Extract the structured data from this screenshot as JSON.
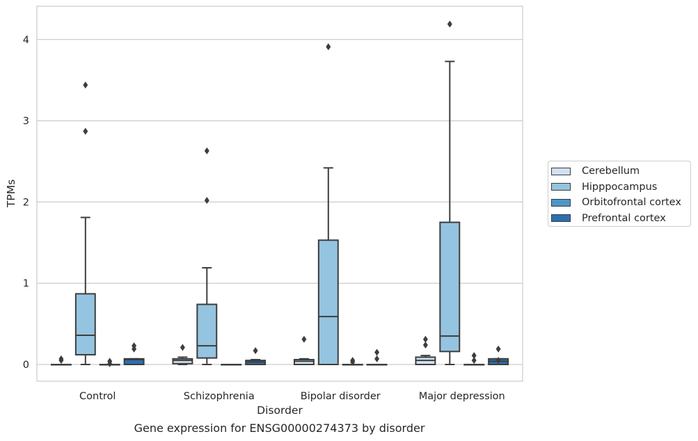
{
  "chart_data": {
    "type": "box",
    "title": "Gene expression for ENSG00000274373 by disorder",
    "xlabel": "Disorder",
    "ylabel": "TPMs",
    "ylim": [
      -0.2,
      4.4
    ],
    "yticks": [
      0,
      1,
      2,
      3,
      4
    ],
    "grid": "horizontal",
    "legend_position": "right",
    "categories": [
      "Control",
      "Schizophrenia",
      "Bipolar disorder",
      "Major depression"
    ],
    "series": [
      {
        "name": "Cerebellum",
        "color": "#d0e1f2",
        "boxes": [
          {
            "q1": 0,
            "median": 0,
            "q3": 0,
            "whisker_low": 0,
            "whisker_high": 0,
            "outliers": [
              0.05,
              0.07
            ]
          },
          {
            "q1": 0.01,
            "median": 0.05,
            "q3": 0.07,
            "whisker_low": 0,
            "whisker_high": 0.09,
            "outliers": [
              0.21
            ]
          },
          {
            "q1": 0,
            "median": 0.04,
            "q3": 0.06,
            "whisker_low": 0,
            "whisker_high": 0.07,
            "outliers": [
              0.31
            ]
          },
          {
            "q1": 0,
            "median": 0.05,
            "q3": 0.09,
            "whisker_low": 0,
            "whisker_high": 0.11,
            "outliers": [
              0.24,
              0.31
            ]
          }
        ]
      },
      {
        "name": "Hipppocampus",
        "color": "#94c4df",
        "boxes": [
          {
            "q1": 0.12,
            "median": 0.36,
            "q3": 0.87,
            "whisker_low": 0,
            "whisker_high": 1.81,
            "outliers": [
              2.87,
              3.44
            ]
          },
          {
            "q1": 0.08,
            "median": 0.23,
            "q3": 0.74,
            "whisker_low": 0,
            "whisker_high": 1.19,
            "outliers": [
              2.02,
              2.63
            ]
          },
          {
            "q1": 0,
            "median": 0.59,
            "q3": 1.53,
            "whisker_low": 0,
            "whisker_high": 2.42,
            "outliers": [
              3.91
            ]
          },
          {
            "q1": 0.16,
            "median": 0.35,
            "q3": 1.75,
            "whisker_low": 0,
            "whisker_high": 3.73,
            "outliers": [
              4.19
            ]
          }
        ]
      },
      {
        "name": "Orbitofrontal cortex",
        "color": "#4a98c9",
        "boxes": [
          {
            "q1": 0,
            "median": 0,
            "q3": 0,
            "whisker_low": 0,
            "whisker_high": 0,
            "outliers": [
              0.01,
              0.04
            ]
          },
          {
            "q1": 0,
            "median": 0,
            "q3": 0,
            "whisker_low": 0,
            "whisker_high": 0,
            "outliers": []
          },
          {
            "q1": 0,
            "median": 0,
            "q3": 0,
            "whisker_low": 0,
            "whisker_high": 0,
            "outliers": [
              0.03,
              0.05
            ]
          },
          {
            "q1": 0,
            "median": 0,
            "q3": 0,
            "whisker_low": 0,
            "whisker_high": 0,
            "outliers": [
              0.05,
              0.11
            ]
          }
        ]
      },
      {
        "name": "Prefrontal cortex",
        "color": "#2e6fb0",
        "boxes": [
          {
            "q1": 0,
            "median": 0.06,
            "q3": 0.07,
            "whisker_low": 0,
            "whisker_high": 0.07,
            "outliers": [
              0.19,
              0.23
            ]
          },
          {
            "q1": 0,
            "median": 0.03,
            "q3": 0.05,
            "whisker_low": 0,
            "whisker_high": 0.06,
            "outliers": [
              0.17
            ]
          },
          {
            "q1": 0,
            "median": 0,
            "q3": 0,
            "whisker_low": 0,
            "whisker_high": 0,
            "outliers": [
              0.07,
              0.15
            ]
          },
          {
            "q1": 0,
            "median": 0.04,
            "q3": 0.07,
            "whisker_low": 0,
            "whisker_high": 0.07,
            "outliers": [
              0.05,
              0.19
            ]
          }
        ]
      }
    ]
  }
}
